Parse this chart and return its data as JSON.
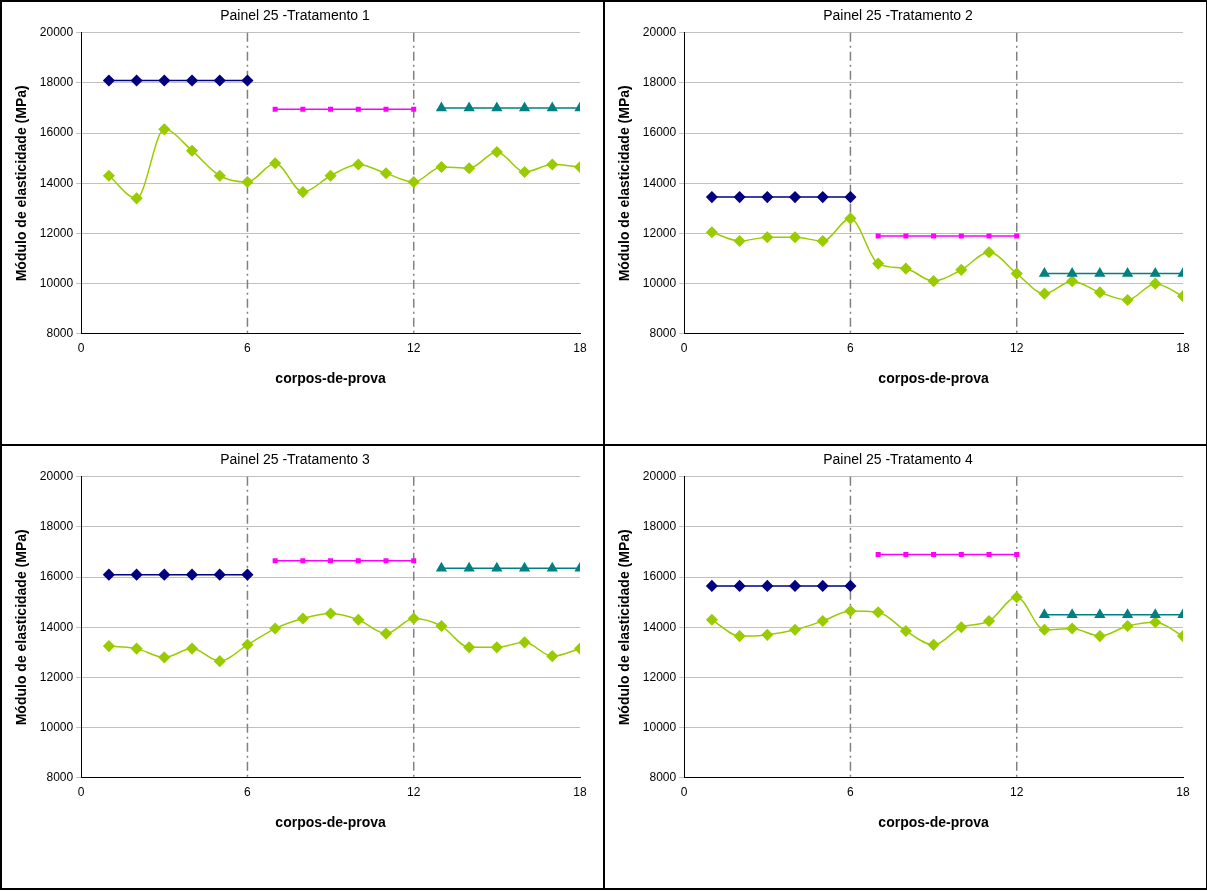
{
  "chart_data": [
    {
      "type": "line",
      "title": "Painel 25 -Tratamento 1",
      "xlabel": "corpos-de-prova",
      "ylabel": "Módulo de elasticidade (MPa)",
      "xlim": [
        0,
        18
      ],
      "xticks": [
        0,
        6,
        12,
        18
      ],
      "ylim": [
        8000,
        20000
      ],
      "yticks": [
        8000,
        10000,
        12000,
        14000,
        16000,
        18000,
        20000
      ],
      "grid": "y",
      "legend": false,
      "line_style": "solid",
      "ref_lines": [
        {
          "axis": "x",
          "value": 6,
          "color": "#808080",
          "line_style": "dashed"
        },
        {
          "axis": "x",
          "value": 12,
          "color": "#808080",
          "line_style": "dashed"
        }
      ],
      "series": [
        {
          "color": "#000080",
          "marker": "diamond",
          "x": [
            1,
            2,
            3,
            4,
            5,
            6
          ],
          "values": [
            18100,
            18100,
            18100,
            18100,
            18100,
            18100
          ]
        },
        {
          "color": "#ff00ff",
          "marker": "square",
          "x": [
            7,
            8,
            9,
            10,
            11,
            12
          ],
          "values": [
            16950,
            16950,
            16950,
            16950,
            16950,
            16950
          ]
        },
        {
          "color": "#008080",
          "marker": "triangle",
          "x": [
            13,
            14,
            15,
            16,
            17,
            18
          ],
          "values": [
            17000,
            17000,
            17000,
            17000,
            17000,
            17000
          ]
        },
        {
          "color": "#99cc00",
          "marker": "diamond",
          "x": [
            1,
            2,
            3,
            4,
            5,
            6,
            7,
            8,
            9,
            10,
            11,
            12,
            13,
            14,
            15,
            16,
            17,
            18
          ],
          "values": [
            14300,
            13400,
            16150,
            15300,
            14300,
            14050,
            14800,
            13650,
            14300,
            14750,
            14400,
            14050,
            14650,
            14600,
            15250,
            14450,
            14750,
            14650
          ]
        }
      ]
    },
    {
      "type": "line",
      "title": "Painel 25 -Tratamento 2",
      "xlabel": "corpos-de-prova",
      "ylabel": "Módulo de elasticidade (MPa)",
      "xlim": [
        0,
        18
      ],
      "xticks": [
        0,
        6,
        12,
        18
      ],
      "ylim": [
        8000,
        20000
      ],
      "yticks": [
        8000,
        10000,
        12000,
        14000,
        16000,
        18000,
        20000
      ],
      "grid": "y",
      "legend": false,
      "line_style": "solid",
      "ref_lines": [
        {
          "axis": "x",
          "value": 6,
          "color": "#808080",
          "line_style": "dashed"
        },
        {
          "axis": "x",
          "value": 12,
          "color": "#808080",
          "line_style": "dashed"
        }
      ],
      "series": [
        {
          "color": "#000080",
          "marker": "diamond",
          "x": [
            1,
            2,
            3,
            4,
            5,
            6
          ],
          "values": [
            13450,
            13450,
            13450,
            13450,
            13450,
            13450
          ]
        },
        {
          "color": "#ff00ff",
          "marker": "square",
          "x": [
            7,
            8,
            9,
            10,
            11,
            12
          ],
          "values": [
            11900,
            11900,
            11900,
            11900,
            11900,
            11900
          ]
        },
        {
          "color": "#008080",
          "marker": "triangle",
          "x": [
            13,
            14,
            15,
            16,
            17,
            18
          ],
          "values": [
            10400,
            10400,
            10400,
            10400,
            10400,
            10400
          ]
        },
        {
          "color": "#99cc00",
          "marker": "diamond",
          "x": [
            1,
            2,
            3,
            4,
            5,
            6,
            7,
            8,
            9,
            10,
            11,
            12,
            13,
            14,
            15,
            16,
            17,
            18
          ],
          "values": [
            12050,
            11700,
            11850,
            11850,
            11700,
            12600,
            10800,
            10600,
            10100,
            10550,
            11250,
            10400,
            9600,
            10100,
            9650,
            9350,
            10000,
            9500
          ]
        }
      ]
    },
    {
      "type": "line",
      "title": "Painel 25 -Tratamento 3",
      "xlabel": "corpos-de-prova",
      "ylabel": "Módulo de elasticidade (MPa)",
      "xlim": [
        0,
        18
      ],
      "xticks": [
        0,
        6,
        12,
        18
      ],
      "ylim": [
        8000,
        20000
      ],
      "yticks": [
        8000,
        10000,
        12000,
        14000,
        16000,
        18000,
        20000
      ],
      "grid": "y",
      "legend": false,
      "line_style": "solid",
      "ref_lines": [
        {
          "axis": "x",
          "value": 6,
          "color": "#808080",
          "line_style": "dashed"
        },
        {
          "axis": "x",
          "value": 12,
          "color": "#808080",
          "line_style": "dashed"
        }
      ],
      "series": [
        {
          "color": "#000080",
          "marker": "diamond",
          "x": [
            1,
            2,
            3,
            4,
            5,
            6
          ],
          "values": [
            16100,
            16100,
            16100,
            16100,
            16100,
            16100
          ]
        },
        {
          "color": "#ff00ff",
          "marker": "square",
          "x": [
            7,
            8,
            9,
            10,
            11,
            12
          ],
          "values": [
            16650,
            16650,
            16650,
            16650,
            16650,
            16650
          ]
        },
        {
          "color": "#008080",
          "marker": "triangle",
          "x": [
            13,
            14,
            15,
            16,
            17,
            18
          ],
          "values": [
            16350,
            16350,
            16350,
            16350,
            16350,
            16350
          ]
        },
        {
          "color": "#99cc00",
          "marker": "diamond",
          "x": [
            1,
            2,
            3,
            4,
            5,
            6,
            7,
            8,
            9,
            10,
            11,
            12,
            13,
            14,
            15,
            16,
            17,
            18
          ],
          "values": [
            13250,
            13150,
            12800,
            13150,
            12650,
            13300,
            13950,
            14350,
            14550,
            14300,
            13750,
            14350,
            14050,
            13200,
            13200,
            13400,
            12850,
            13150
          ]
        }
      ]
    },
    {
      "type": "line",
      "title": "Painel 25 -Tratamento 4",
      "xlabel": "corpos-de-prova",
      "ylabel": "Módulo de elasticidade (MPa)",
      "xlim": [
        0,
        18
      ],
      "xticks": [
        0,
        6,
        12,
        18
      ],
      "ylim": [
        8000,
        20000
      ],
      "yticks": [
        8000,
        10000,
        12000,
        14000,
        16000,
        18000,
        20000
      ],
      "grid": "y",
      "legend": false,
      "line_style": "solid",
      "ref_lines": [
        {
          "axis": "x",
          "value": 6,
          "color": "#808080",
          "line_style": "dashed"
        },
        {
          "axis": "x",
          "value": 12,
          "color": "#808080",
          "line_style": "dashed"
        }
      ],
      "series": [
        {
          "color": "#000080",
          "marker": "diamond",
          "x": [
            1,
            2,
            3,
            4,
            5,
            6
          ],
          "values": [
            15650,
            15650,
            15650,
            15650,
            15650,
            15650
          ]
        },
        {
          "color": "#ff00ff",
          "marker": "square",
          "x": [
            7,
            8,
            9,
            10,
            11,
            12
          ],
          "values": [
            16900,
            16900,
            16900,
            16900,
            16900,
            16900
          ]
        },
        {
          "color": "#008080",
          "marker": "triangle",
          "x": [
            13,
            14,
            15,
            16,
            17,
            18
          ],
          "values": [
            14500,
            14500,
            14500,
            14500,
            14500,
            14500
          ]
        },
        {
          "color": "#99cc00",
          "marker": "diamond",
          "x": [
            1,
            2,
            3,
            4,
            5,
            6,
            7,
            8,
            9,
            10,
            11,
            12,
            13,
            14,
            15,
            16,
            17,
            18
          ],
          "values": [
            14300,
            13650,
            13700,
            13900,
            14250,
            14650,
            14600,
            13850,
            13300,
            14000,
            14250,
            15200,
            13900,
            13950,
            13650,
            14050,
            14200,
            13650
          ]
        }
      ]
    }
  ]
}
